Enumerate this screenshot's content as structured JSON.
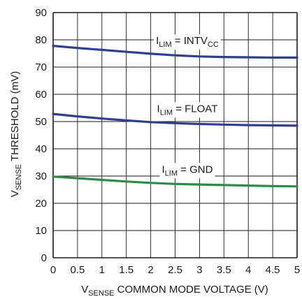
{
  "chart_data": {
    "type": "line",
    "xlabel": {
      "prefix": "V",
      "sub": "SENSE",
      "suffix": " COMMON MODE VOLTAGE (V)"
    },
    "ylabel": {
      "prefix": "V",
      "sub": "SENSE",
      "suffix": " THRESHOLD (mV)"
    },
    "xlim": [
      0,
      5
    ],
    "ylim": [
      0,
      90
    ],
    "xticks": [
      "0",
      "0.5",
      "1",
      "1.5",
      "2",
      "2.5",
      "3",
      "3.5",
      "4",
      "4.5",
      "5"
    ],
    "yticks": [
      "0",
      "10",
      "20",
      "30",
      "40",
      "50",
      "60",
      "70",
      "80",
      "90"
    ],
    "grid": true,
    "x": [
      0,
      0.5,
      1,
      1.5,
      2,
      2.5,
      3,
      3.5,
      4,
      4.5,
      5
    ],
    "series": [
      {
        "label_prefix": "I",
        "label_sub": "LIM",
        "label_mid": " = INTV",
        "label_sub2": "CC",
        "color": "#2e3f8f",
        "values": [
          77.8,
          77.0,
          76.3,
          75.6,
          74.9,
          74.3,
          73.9,
          73.7,
          73.6,
          73.5,
          73.5
        ]
      },
      {
        "label_prefix": "I",
        "label_sub": "LIM",
        "label_mid": " = FLOAT",
        "label_sub2": "",
        "color": "#2e3f8f",
        "values": [
          52.8,
          51.9,
          51.1,
          50.4,
          49.8,
          49.4,
          49.1,
          48.9,
          48.7,
          48.6,
          48.5
        ]
      },
      {
        "label_prefix": "I",
        "label_sub": "LIM",
        "label_mid": " = GND",
        "label_sub2": "",
        "color": "#2e8a48",
        "values": [
          29.8,
          29.2,
          28.6,
          28.0,
          27.5,
          27.1,
          26.9,
          26.7,
          26.5,
          26.3,
          26.2
        ]
      }
    ]
  }
}
